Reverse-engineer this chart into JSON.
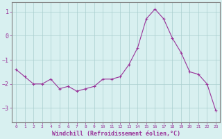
{
  "x": [
    0,
    1,
    2,
    3,
    4,
    5,
    6,
    7,
    8,
    9,
    10,
    11,
    12,
    13,
    14,
    15,
    16,
    17,
    18,
    19,
    20,
    21,
    22,
    23
  ],
  "y": [
    -1.4,
    -1.7,
    -2.0,
    -2.0,
    -1.8,
    -2.2,
    -2.1,
    -2.3,
    -2.2,
    -2.1,
    -1.8,
    -1.8,
    -1.7,
    -1.2,
    -0.5,
    0.7,
    1.1,
    0.7,
    -0.1,
    -0.7,
    -1.5,
    -1.6,
    -2.0,
    -3.1
  ],
  "line_color": "#993399",
  "marker": "+",
  "marker_size": 3,
  "background_color": "#d8f0f0",
  "grid_color": "#aacece",
  "axis_color": "#808080",
  "xlabel": "Windchill (Refroidissement éolien,°C)",
  "xlabel_color": "#993399",
  "tick_color": "#993399",
  "ylim": [
    -3.6,
    1.4
  ],
  "xlim": [
    -0.5,
    23.5
  ],
  "yticks": [
    -3,
    -2,
    -1,
    0,
    1
  ],
  "xticks": [
    0,
    1,
    2,
    3,
    4,
    5,
    6,
    7,
    8,
    9,
    10,
    11,
    12,
    13,
    14,
    15,
    16,
    17,
    18,
    19,
    20,
    21,
    22,
    23
  ],
  "figsize": [
    3.2,
    2.0
  ],
  "dpi": 100
}
